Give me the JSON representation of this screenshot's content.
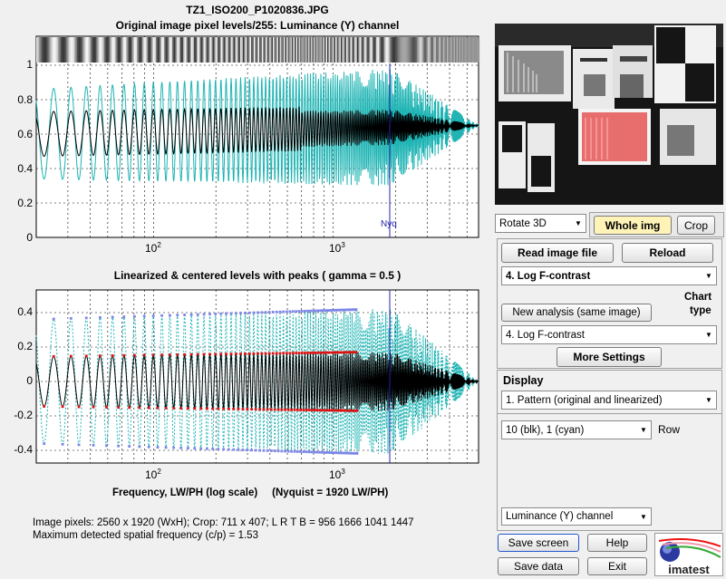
{
  "plot_top": {
    "title_line1": "TZ1_ISO200_P1020836.JPG",
    "title_line2": "Original image pixel levels/255:  Luminance (Y) channel",
    "yticks": [
      "0",
      "0.2",
      "0.4",
      "0.6",
      "0.8",
      "1"
    ],
    "xtick_1": "10",
    "xtick_1_exp": "2",
    "xtick_2": "10",
    "xtick_2_exp": "3",
    "nyq_label": "Nyq"
  },
  "plot_bottom": {
    "title": "Linearized & centered levels with peaks ( gamma = 0.5 )",
    "yticks": [
      "-0.4",
      "-0.2",
      "0",
      "0.2",
      "0.4"
    ],
    "xtick_1": "10",
    "xtick_1_exp": "2",
    "xtick_2": "10",
    "xtick_2_exp": "3",
    "xlabel": "Frequency, LW/PH (log scale)",
    "nyquist_note": "(Nyquist = 1920 LW/PH)"
  },
  "info": {
    "line1": "Image pixels: 2560 x 1920 (WxH);   Crop: 711 x 407;   L R T B = 956 1666 1041 1447",
    "line2": "Maximum detected spatial frequency (c/p) = 1.53"
  },
  "controls": {
    "rotate_select": "Rotate 3D",
    "whole_img": "Whole img",
    "crop": "Crop",
    "read_image": "Read image file",
    "reload": "Reload",
    "chart_select_1": "4. Log F-contrast",
    "new_analysis": "New analysis (same image)",
    "chart_type_label_1": "Chart",
    "chart_type_label_2": "type",
    "chart_select_2": "4. Log F-contrast",
    "more_settings": "More Settings",
    "display_label": "Display",
    "display_select": "1. Pattern (original and linearized)",
    "row_select": "10 (blk), 1 (cyan)",
    "row_label": "Row",
    "channel_select": "Luminance (Y) channel",
    "save_screen": "Save screen",
    "help": "Help",
    "save_data": "Save data",
    "exit": "Exit",
    "logo_text": "imatest"
  },
  "colors": {
    "cyan": "#20b4b4",
    "black_trace": "#000000",
    "red_peaks": "#dd1111",
    "blue_peaks": "#7c86e8",
    "nyq": "#2222aa",
    "whole_img_bg": "#fff3b8"
  }
}
